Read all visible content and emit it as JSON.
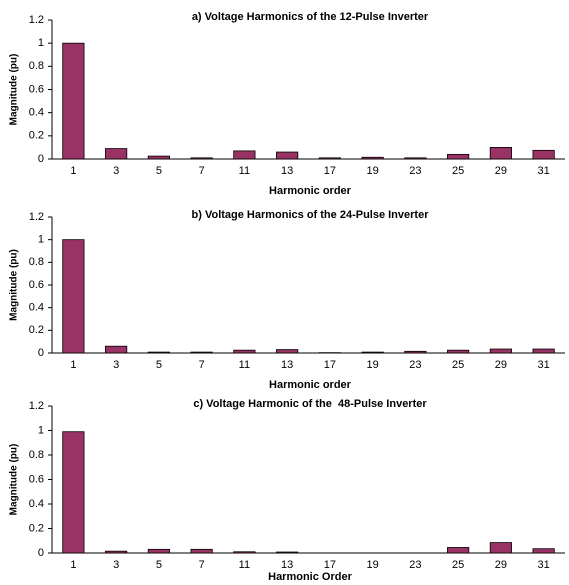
{
  "chart_data": [
    {
      "type": "bar",
      "title": "a) Voltage Harmonics of the 12-Pulse Inverter",
      "y_label": "Magnitude (pu)",
      "x_label": "Harmonic order",
      "categories": [
        "1",
        "3",
        "5",
        "7",
        "11",
        "13",
        "17",
        "19",
        "23",
        "25",
        "29",
        "31"
      ],
      "values": [
        1,
        0.09,
        0.025,
        0.01,
        0.07,
        0.06,
        0.01,
        0.015,
        0.01,
        0.04,
        0.1,
        0.075
      ],
      "color": "#993366",
      "ylim": [
        0,
        1.2
      ],
      "yticks": [
        0,
        0.2,
        0.4,
        0.6,
        0.8,
        1,
        1.2
      ]
    },
    {
      "type": "bar",
      "title": "b) Voltage Harmonics of the 24-Pulse Inverter",
      "y_label": "Magnitude (pu)",
      "x_label": "Harmonic order",
      "categories": [
        "1",
        "3",
        "5",
        "7",
        "11",
        "13",
        "17",
        "19",
        "23",
        "25",
        "29",
        "31"
      ],
      "values": [
        1,
        0.06,
        0.008,
        0.008,
        0.025,
        0.03,
        0.003,
        0.008,
        0.015,
        0.025,
        0.035,
        0.035
      ],
      "color": "#993366",
      "ylim": [
        0,
        1.2
      ],
      "yticks": [
        0,
        0.2,
        0.4,
        0.6,
        0.8,
        1,
        1.2
      ]
    },
    {
      "type": "bar",
      "title": "c) Voltage Harmonic of the  48-Pulse Inverter",
      "y_label": "Magnitude (pu)",
      "x_label": "Harmonic Order",
      "categories": [
        "1",
        "3",
        "5",
        "7",
        "11",
        "13",
        "17",
        "19",
        "23",
        "25",
        "29",
        "31"
      ],
      "values": [
        0.99,
        0.015,
        0.03,
        0.03,
        0.01,
        0.008,
        0,
        0,
        0,
        0.045,
        0.085,
        0.035
      ],
      "color": "#993366",
      "ylim": [
        0,
        1.2
      ],
      "yticks": [
        0,
        0.2,
        0.4,
        0.6,
        0.8,
        1,
        1.2
      ]
    }
  ]
}
